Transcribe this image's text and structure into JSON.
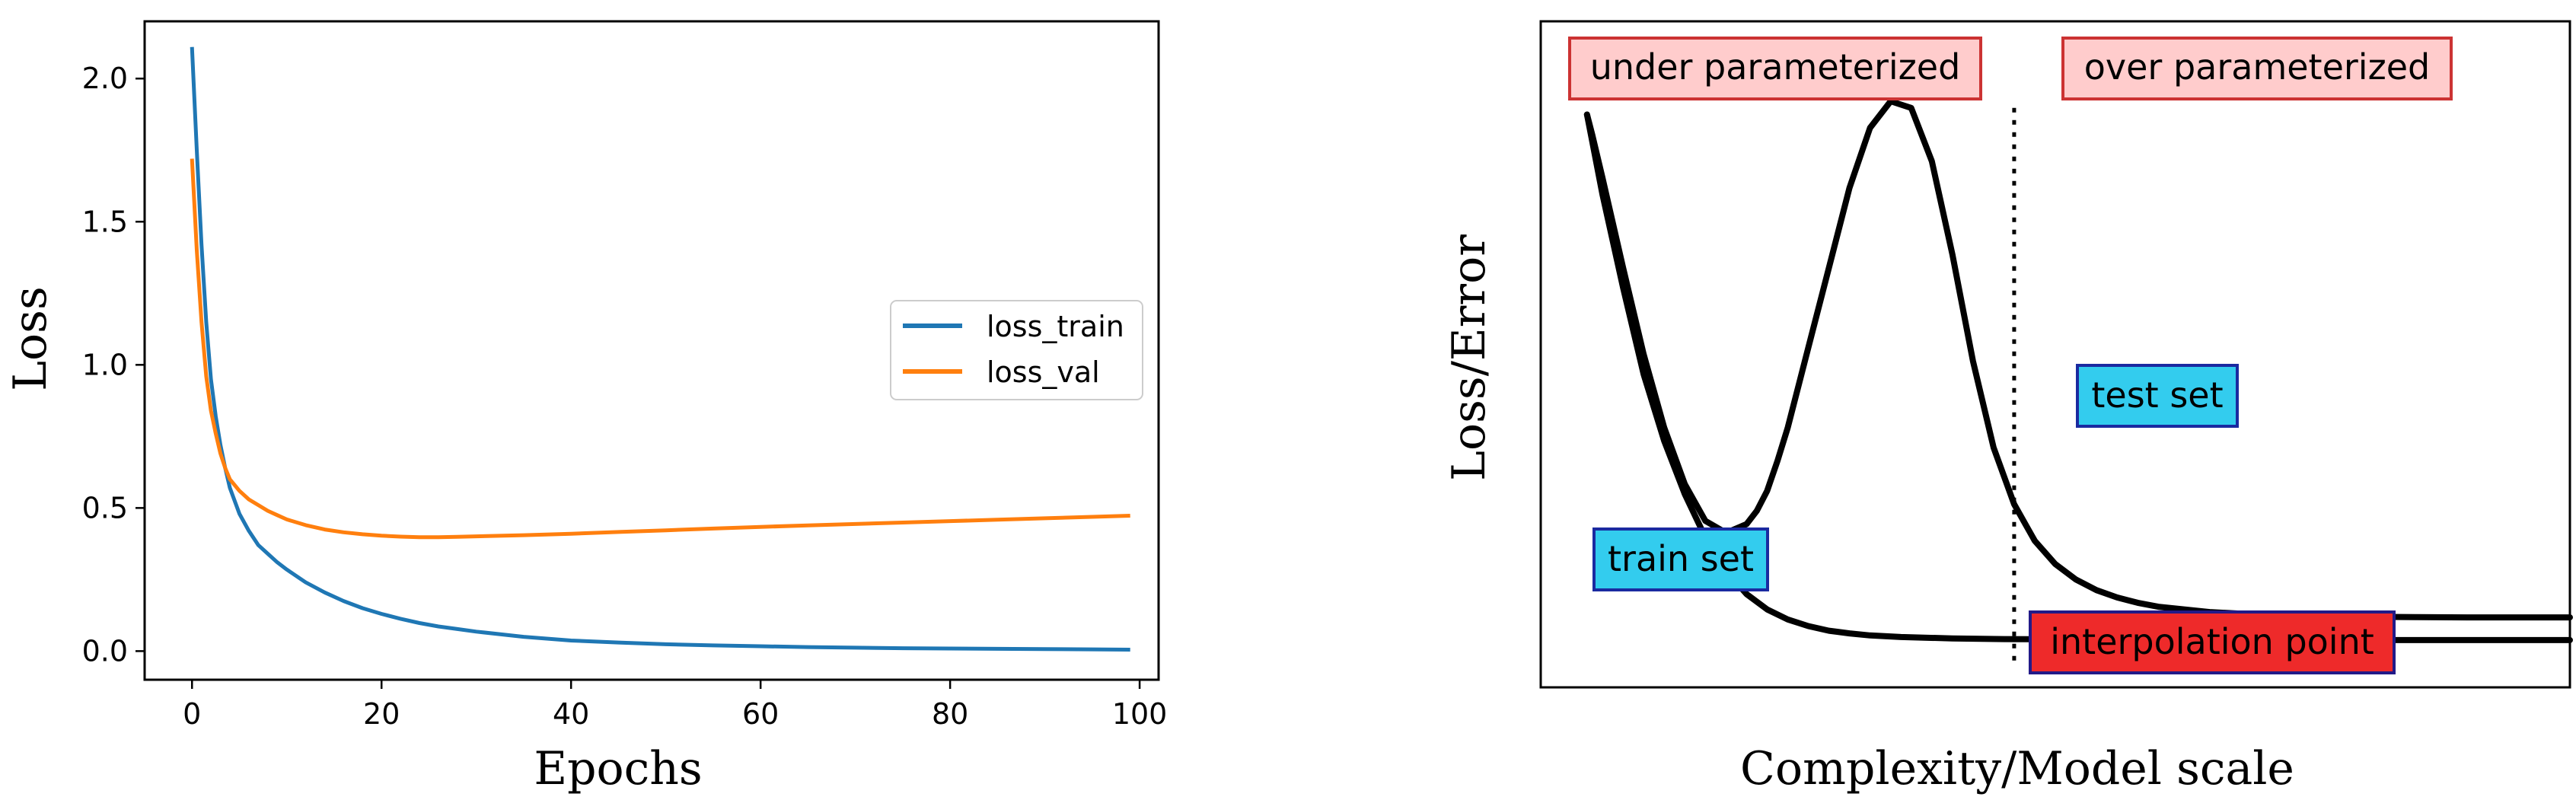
{
  "chart_data": [
    {
      "type": "line",
      "title": "",
      "xlabel": "Epochs",
      "ylabel": "Loss",
      "xlim": [
        -5,
        102
      ],
      "ylim": [
        -0.1,
        2.2
      ],
      "xticks": [
        0,
        20,
        40,
        60,
        80,
        100
      ],
      "yticks": [
        0.0,
        0.5,
        1.0,
        1.5,
        2.0
      ],
      "xtick_labels": [
        "0",
        "20",
        "40",
        "60",
        "80",
        "100"
      ],
      "ytick_labels": [
        "0.0",
        "0.5",
        "1.0",
        "1.5",
        "2.0"
      ],
      "grid": false,
      "legend_position": "center-right",
      "series": [
        {
          "name": "loss_train",
          "color": "#1f77b4",
          "x": [
            0,
            0.5,
            1,
            1.5,
            2,
            2.5,
            3,
            3.5,
            4,
            5,
            6,
            7,
            8,
            9,
            10,
            12,
            14,
            16,
            18,
            20,
            22,
            24,
            26,
            28,
            30,
            35,
            40,
            45,
            50,
            55,
            60,
            65,
            70,
            75,
            80,
            85,
            90,
            95,
            99
          ],
          "y": [
            2.11,
            1.75,
            1.42,
            1.15,
            0.95,
            0.82,
            0.72,
            0.64,
            0.57,
            0.48,
            0.42,
            0.37,
            0.34,
            0.31,
            0.285,
            0.24,
            0.205,
            0.175,
            0.15,
            0.13,
            0.113,
            0.098,
            0.086,
            0.077,
            0.068,
            0.05,
            0.037,
            0.03,
            0.024,
            0.02,
            0.017,
            0.014,
            0.012,
            0.01,
            0.009,
            0.008,
            0.007,
            0.006,
            0.005
          ]
        },
        {
          "name": "loss_val",
          "color": "#ff7f0e",
          "x": [
            0,
            0.5,
            1,
            1.5,
            2,
            2.5,
            3,
            3.5,
            4,
            5,
            6,
            7,
            8,
            9,
            10,
            12,
            14,
            16,
            18,
            20,
            22,
            24,
            26,
            28,
            30,
            35,
            40,
            45,
            50,
            55,
            60,
            65,
            70,
            75,
            80,
            85,
            90,
            95,
            99
          ],
          "y": [
            1.72,
            1.4,
            1.15,
            0.96,
            0.84,
            0.76,
            0.69,
            0.64,
            0.6,
            0.56,
            0.53,
            0.51,
            0.49,
            0.475,
            0.46,
            0.44,
            0.425,
            0.415,
            0.408,
            0.403,
            0.4,
            0.398,
            0.398,
            0.399,
            0.401,
            0.405,
            0.41,
            0.416,
            0.422,
            0.428,
            0.434,
            0.439,
            0.444,
            0.449,
            0.454,
            0.459,
            0.464,
            0.469,
            0.473
          ]
        }
      ]
    },
    {
      "type": "line",
      "title": "",
      "xlabel": "Complexity/Model scale",
      "ylabel": "Loss/Error",
      "xlim": [
        0,
        100
      ],
      "ylim": [
        0,
        100
      ],
      "grid": false,
      "series": [
        {
          "color": "#000000",
          "x": [
            4.5,
            5,
            6,
            8,
            10,
            12,
            14,
            16,
            18,
            20,
            22,
            24,
            26,
            28,
            30,
            32,
            35,
            40,
            45,
            50,
            55,
            60,
            65,
            70,
            75,
            80,
            85,
            90,
            95,
            100
          ],
          "y": [
            86,
            82,
            74,
            60,
            47,
            37,
            29,
            22.5,
            17.5,
            14,
            11.7,
            10.2,
            9.2,
            8.5,
            8.1,
            7.8,
            7.55,
            7.35,
            7.25,
            7.2,
            7.15,
            7.12,
            7.1,
            7.1,
            7.1,
            7.1,
            7.1,
            7.1,
            7.1,
            7.1
          ]
        },
        {
          "color": "#000000",
          "x": [
            4.5,
            5,
            6,
            8,
            10,
            12,
            14,
            16,
            18,
            20,
            21,
            22,
            23,
            24,
            26,
            28,
            30,
            32,
            34,
            36,
            38,
            40,
            42,
            44,
            46,
            48,
            50,
            52,
            54,
            56,
            58,
            60,
            65,
            70,
            75,
            80,
            85,
            90,
            95,
            100
          ],
          "y": [
            86,
            83,
            76.5,
            63,
            50,
            39,
            30.5,
            25,
            23.2,
            24.5,
            26.5,
            29.5,
            34,
            39,
            51,
            63,
            75,
            84,
            88,
            87,
            79,
            65,
            49,
            36,
            27.5,
            22,
            18.5,
            16.2,
            14.6,
            13.5,
            12.7,
            12.1,
            11.3,
            10.9,
            10.7,
            10.6,
            10.55,
            10.5,
            10.5,
            10.5
          ]
        }
      ],
      "annotations": {
        "interpolation_line_x": 46,
        "under_parameterized": "under parameterized",
        "over_parameterized": "over parameterized",
        "test_set": "test set",
        "train_set": "train set",
        "interpolation_point": "interpolation point"
      },
      "colors": {
        "region_label_fill": "#ffcccc",
        "region_label_border": "#cc3333",
        "set_label_fill": "#33ccee",
        "set_label_border": "#1a2aa0",
        "interpolation_fill": "#ee2a2a",
        "interpolation_border": "#221a88"
      }
    }
  ]
}
